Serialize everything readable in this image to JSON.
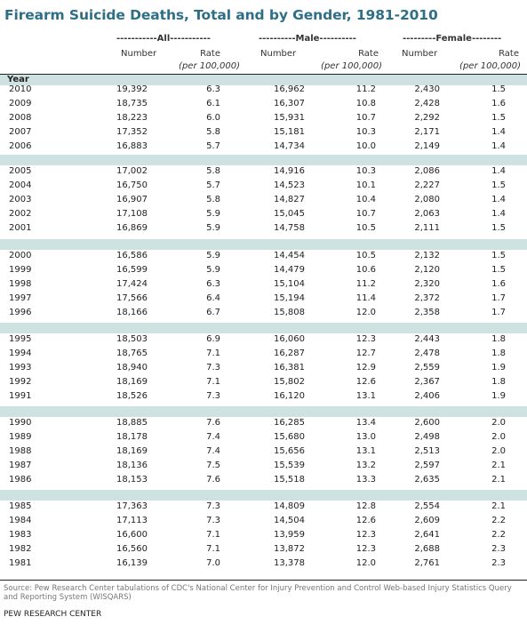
{
  "title": "Firearm Suicide Deaths, Total and by Gender, 1981-2010",
  "groups": {
    "all": "-----------All-----------",
    "male": "----------Male----------",
    "female": "---------Female--------"
  },
  "headers": {
    "number": "Number",
    "rate": "Rate",
    "rate_sub": "(per 100,000)",
    "year": "Year"
  },
  "blocks": [
    [
      [
        "2010",
        "19,392",
        "6.3",
        "16,962",
        "11.2",
        "2,430",
        "1.5"
      ],
      [
        "2009",
        "18,735",
        "6.1",
        "16,307",
        "10.8",
        "2,428",
        "1.6"
      ],
      [
        "2008",
        "18,223",
        "6.0",
        "15,931",
        "10.7",
        "2,292",
        "1.5"
      ],
      [
        "2007",
        "17,352",
        "5.8",
        "15,181",
        "10.3",
        "2,171",
        "1.4"
      ],
      [
        "2006",
        "16,883",
        "5.7",
        "14,734",
        "10.0",
        "2,149",
        "1.4"
      ]
    ],
    [
      [
        "2005",
        "17,002",
        "5.8",
        "14,916",
        "10.3",
        "2,086",
        "1.4"
      ],
      [
        "2004",
        "16,750",
        "5.7",
        "14,523",
        "10.1",
        "2,227",
        "1.5"
      ],
      [
        "2003",
        "16,907",
        "5.8",
        "14,827",
        "10.4",
        "2,080",
        "1.4"
      ],
      [
        "2002",
        "17,108",
        "5.9",
        "15,045",
        "10.7",
        "2,063",
        "1.4"
      ],
      [
        "2001",
        "16,869",
        "5.9",
        "14,758",
        "10.5",
        "2,111",
        "1.5"
      ]
    ],
    [
      [
        "2000",
        "16,586",
        "5.9",
        "14,454",
        "10.5",
        "2,132",
        "1.5"
      ],
      [
        "1999",
        "16,599",
        "5.9",
        "14,479",
        "10.6",
        "2,120",
        "1.5"
      ],
      [
        "1998",
        "17,424",
        "6.3",
        "15,104",
        "11.2",
        "2,320",
        "1.6"
      ],
      [
        "1997",
        "17,566",
        "6.4",
        "15,194",
        "11.4",
        "2,372",
        "1.7"
      ],
      [
        "1996",
        "18,166",
        "6.7",
        "15,808",
        "12.0",
        "2,358",
        "1.7"
      ]
    ],
    [
      [
        "1995",
        "18,503",
        "6.9",
        "16,060",
        "12.3",
        "2,443",
        "1.8"
      ],
      [
        "1994",
        "18,765",
        "7.1",
        "16,287",
        "12.7",
        "2,478",
        "1.8"
      ],
      [
        "1993",
        "18,940",
        "7.3",
        "16,381",
        "12.9",
        "2,559",
        "1.9"
      ],
      [
        "1992",
        "18,169",
        "7.1",
        "15,802",
        "12.6",
        "2,367",
        "1.8"
      ],
      [
        "1991",
        "18,526",
        "7.3",
        "16,120",
        "13.1",
        "2,406",
        "1.9"
      ]
    ],
    [
      [
        "1990",
        "18,885",
        "7.6",
        "16,285",
        "13.4",
        "2,600",
        "2.0"
      ],
      [
        "1989",
        "18,178",
        "7.4",
        "15,680",
        "13.0",
        "2,498",
        "2.0"
      ],
      [
        "1988",
        "18,169",
        "7.4",
        "15,656",
        "13.1",
        "2,513",
        "2.0"
      ],
      [
        "1987",
        "18,136",
        "7.5",
        "15,539",
        "13.2",
        "2,597",
        "2.1"
      ],
      [
        "1986",
        "18,153",
        "7.6",
        "15,518",
        "13.3",
        "2,635",
        "2.1"
      ]
    ],
    [
      [
        "1985",
        "17,363",
        "7.3",
        "14,809",
        "12.8",
        "2,554",
        "2.1"
      ],
      [
        "1984",
        "17,113",
        "7.3",
        "14,504",
        "12.6",
        "2,609",
        "2.2"
      ],
      [
        "1983",
        "16,600",
        "7.1",
        "13,959",
        "12.3",
        "2,641",
        "2.2"
      ],
      [
        "1982",
        "16,560",
        "7.1",
        "13,872",
        "12.3",
        "2,688",
        "2.3"
      ],
      [
        "1981",
        "16,139",
        "7.0",
        "13,378",
        "12.0",
        "2,761",
        "2.3"
      ]
    ]
  ],
  "source": "Source: Pew Research Center tabulations of CDC's National Center for Injury Prevention and Control Web-based Injury Statistics Query and Reporting System (WISQARS)",
  "footer": "PEW RESEARCH CENTER",
  "colors": {
    "title": "#2e6f86",
    "band": "#cfe2e2"
  }
}
